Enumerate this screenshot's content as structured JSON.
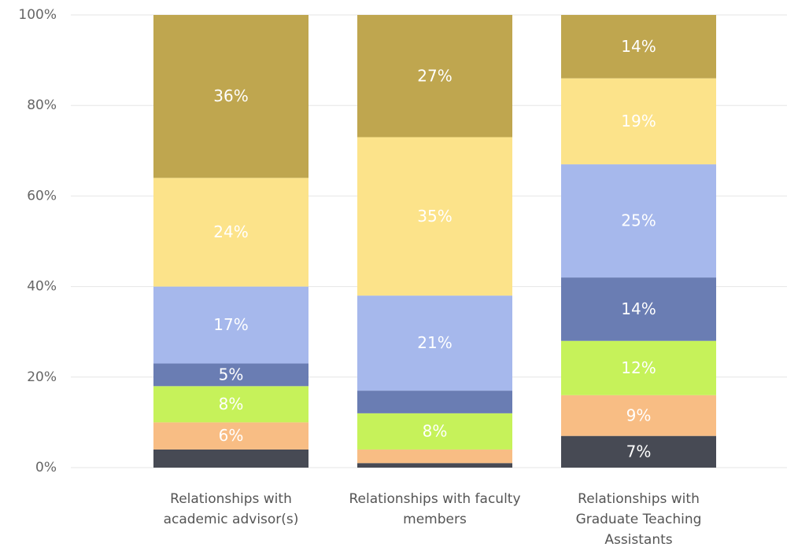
{
  "chart_data": {
    "type": "stacked_bar",
    "categories": [
      "Relationships with academic advisor(s)",
      "Relationships with faculty members",
      "Relationships with Graduate Teaching Assistants"
    ],
    "series": [
      {
        "color": "#474a54",
        "values": [
          4,
          1,
          7
        ],
        "value_labels": [
          null,
          null,
          "7%"
        ]
      },
      {
        "color": "#f8bd84",
        "values": [
          6,
          3,
          9
        ],
        "value_labels": [
          "6%",
          null,
          "9%"
        ]
      },
      {
        "color": "#c6f25a",
        "values": [
          8,
          8,
          12
        ],
        "value_labels": [
          "8%",
          "8%",
          "12%"
        ]
      },
      {
        "color": "#6a7db3",
        "values": [
          5,
          5,
          14
        ],
        "value_labels": [
          "5%",
          null,
          "14%"
        ]
      },
      {
        "color": "#a6b8ec",
        "values": [
          17,
          21,
          25
        ],
        "value_labels": [
          "17%",
          "21%",
          "25%"
        ]
      },
      {
        "color": "#fce38a",
        "values": [
          24,
          35,
          19
        ],
        "value_labels": [
          "24%",
          "35%",
          "19%"
        ]
      },
      {
        "color": "#bfa64f",
        "values": [
          36,
          27,
          14
        ],
        "value_labels": [
          "36%",
          "27%",
          "14%"
        ]
      }
    ],
    "ylim": [
      0,
      100
    ],
    "yticks": [
      {
        "value": 0,
        "label": "0%"
      },
      {
        "value": 20,
        "label": "20%"
      },
      {
        "value": 40,
        "label": "40%"
      },
      {
        "value": 60,
        "label": "60%"
      },
      {
        "value": 80,
        "label": "80%"
      },
      {
        "value": 100,
        "label": "100%"
      }
    ],
    "grid": true
  }
}
